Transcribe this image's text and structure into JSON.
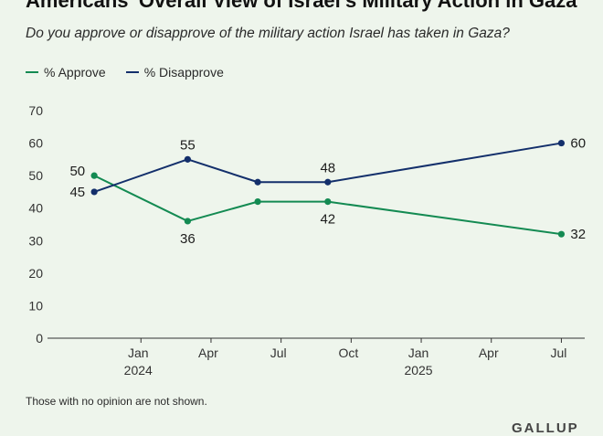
{
  "header": {
    "title": "Americans' Overall View of Israel's Military Action in Gaza",
    "subtitle": "Do you approve or disapprove of the military action Israel has taken in Gaza?"
  },
  "footnote": "Those with no opinion are not shown.",
  "logo_text": "GALLUP",
  "colors": {
    "approve": "#138a52",
    "disapprove": "#132f6b",
    "axis": "#333333",
    "tick_text": "#333333",
    "background": "#eef5ec"
  },
  "chart_data": {
    "type": "line",
    "title": "Americans' Overall View of Israel's Military Action in Gaza",
    "subtitle": "Do you approve or disapprove of the military action Israel has taken in Gaza?",
    "xlabel": "",
    "ylabel": "",
    "ylim": [
      0,
      70
    ],
    "yticks": [
      0,
      10,
      20,
      30,
      40,
      50,
      60,
      70
    ],
    "xlim_months": [
      -4,
      19
    ],
    "xticks": [
      {
        "month": 0,
        "label": "Jan",
        "sublabel": "2024"
      },
      {
        "month": 3,
        "label": "Apr",
        "sublabel": ""
      },
      {
        "month": 6,
        "label": "Jul",
        "sublabel": ""
      },
      {
        "month": 9,
        "label": "Oct",
        "sublabel": ""
      },
      {
        "month": 12,
        "label": "Jan",
        "sublabel": "2025"
      },
      {
        "month": 15,
        "label": "Apr",
        "sublabel": ""
      },
      {
        "month": 18,
        "label": "Jul",
        "sublabel": ""
      }
    ],
    "grid": false,
    "legend_position": "top-left",
    "series": [
      {
        "name": "% Approve",
        "key": "approve",
        "points": [
          {
            "month": -2,
            "value": 50
          },
          {
            "month": 2,
            "value": 36
          },
          {
            "month": 5,
            "value": 42
          },
          {
            "month": 8,
            "value": 42
          },
          {
            "month": 18,
            "value": 32
          }
        ]
      },
      {
        "name": "% Disapprove",
        "key": "disapprove",
        "points": [
          {
            "month": -2,
            "value": 45
          },
          {
            "month": 2,
            "value": 55
          },
          {
            "month": 5,
            "value": 48
          },
          {
            "month": 8,
            "value": 48
          },
          {
            "month": 18,
            "value": 60
          }
        ]
      }
    ],
    "data_labels": [
      {
        "series": "approve",
        "index": 0,
        "text": "50",
        "placement": "left-above"
      },
      {
        "series": "disapprove",
        "index": 0,
        "text": "45",
        "placement": "left-below"
      },
      {
        "series": "disapprove",
        "index": 1,
        "text": "55",
        "placement": "above"
      },
      {
        "series": "approve",
        "index": 1,
        "text": "36",
        "placement": "below"
      },
      {
        "series": "disapprove",
        "index": 3,
        "text": "48",
        "placement": "above"
      },
      {
        "series": "approve",
        "index": 3,
        "text": "42",
        "placement": "below"
      },
      {
        "series": "disapprove",
        "index": 4,
        "text": "60",
        "placement": "right"
      },
      {
        "series": "approve",
        "index": 4,
        "text": "32",
        "placement": "right"
      }
    ]
  }
}
